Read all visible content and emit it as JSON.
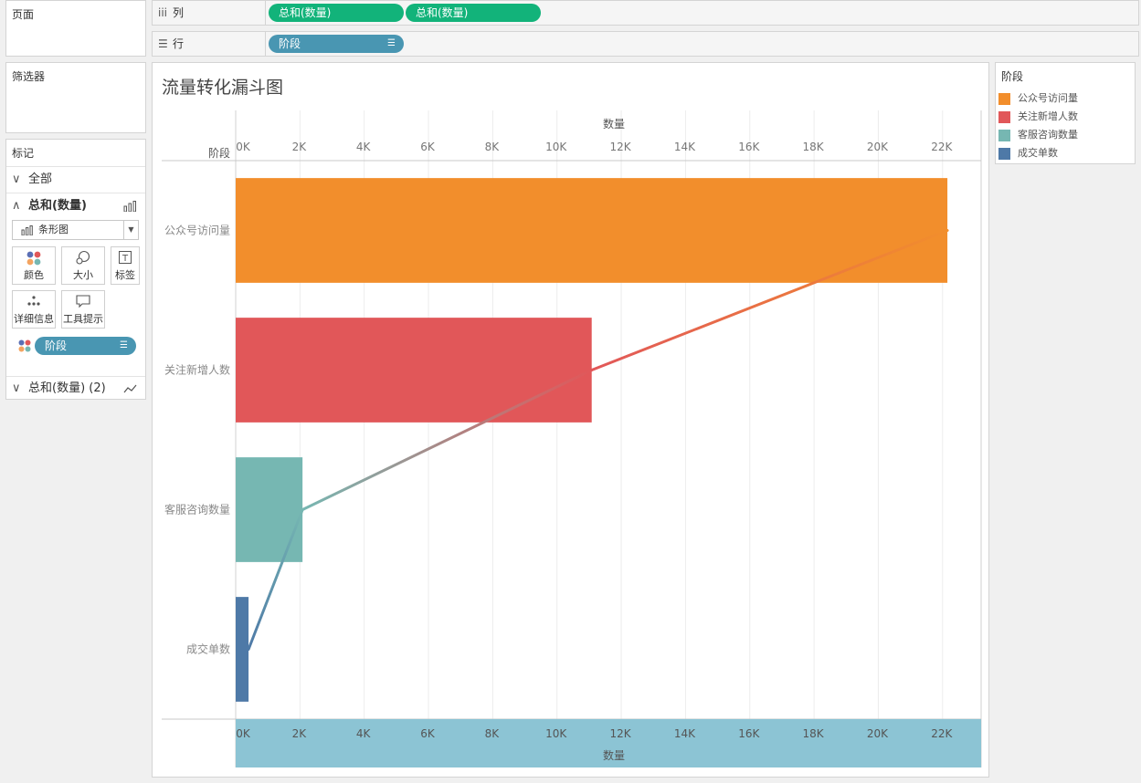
{
  "left": {
    "pages_title": "页面",
    "filters_title": "筛选器",
    "marks": {
      "title": "标记",
      "all_label": "全部",
      "measure1_label": "总和(数量)",
      "mark_type": "条形图",
      "buttons": {
        "color": "颜色",
        "size": "大小",
        "label": "标签",
        "detail": "详细信息",
        "tooltip": "工具提示"
      },
      "color_pill": "阶段",
      "measure2_label": "总和(数量) (2)"
    }
  },
  "shelves": {
    "columns": {
      "label": "列",
      "pills": [
        "总和(数量)",
        "总和(数量)"
      ]
    },
    "rows": {
      "label": "行",
      "pill": "阶段"
    }
  },
  "colors": {
    "orange": "#f28e2c",
    "red": "#e15759",
    "teal": "#76b7b2",
    "blue": "#4e79a7",
    "green_pill": "#12b37a",
    "blue_pill": "#4996b2",
    "bottom_axis_fill": "#8cc4d4"
  },
  "chart_data": {
    "type": "bar",
    "title": "流量转化漏斗图",
    "row_header": "阶段",
    "top_axis_title": "数量",
    "bottom_axis_title": "数量",
    "categories": [
      "公众号访问量",
      "关注新增人数",
      "客服咨询数量",
      "成交单数"
    ],
    "values": [
      22150,
      11080,
      2080,
      400
    ],
    "line_values": [
      22150,
      11080,
      2080,
      400
    ],
    "bar_colors": [
      "#f28e2c",
      "#e15759",
      "#76b7b2",
      "#4e79a7"
    ],
    "xlim": [
      0,
      23200
    ],
    "ticks": [
      0,
      2000,
      4000,
      6000,
      8000,
      10000,
      12000,
      14000,
      16000,
      18000,
      20000,
      22000
    ],
    "tick_labels": [
      "0K",
      "2K",
      "4K",
      "6K",
      "8K",
      "10K",
      "12K",
      "14K",
      "16K",
      "18K",
      "20K",
      "22K"
    ],
    "legend": {
      "title": "阶段",
      "items": [
        {
          "label": "公众号访问量",
          "color": "#f28e2c"
        },
        {
          "label": "关注新增人数",
          "color": "#e15759"
        },
        {
          "label": "客服咨询数量",
          "color": "#76b7b2"
        },
        {
          "label": "成交单数",
          "color": "#4e79a7"
        }
      ]
    }
  }
}
